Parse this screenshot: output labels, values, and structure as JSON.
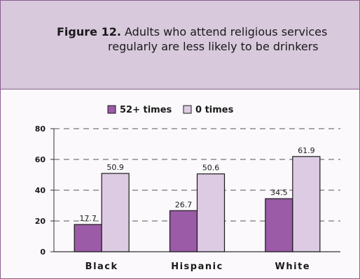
{
  "figure": {
    "label": "Figure 12.",
    "title_line1": "Adults who attend religious services",
    "title_line2": "regularly are less likely to be drinkers"
  },
  "colors": {
    "series_52": "#9b5ba6",
    "series_0": "#dccbe3",
    "header_bg": "#d8c9dd",
    "border": "#8a5f8f"
  },
  "chart_data": {
    "type": "bar",
    "categories": [
      "Black",
      "Hispanic",
      "White"
    ],
    "series": [
      {
        "name": "52+ times",
        "values": [
          17.7,
          26.7,
          34.5
        ]
      },
      {
        "name": "0 times",
        "values": [
          50.9,
          50.6,
          61.9
        ]
      }
    ],
    "ylim": [
      0,
      80
    ],
    "yticks": [
      0,
      20,
      40,
      60,
      80
    ],
    "grid": true,
    "legend": "top"
  }
}
